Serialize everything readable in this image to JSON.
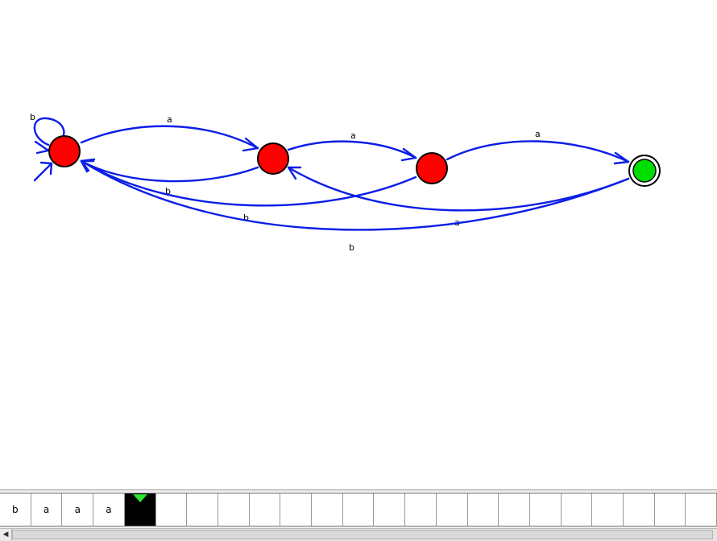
{
  "diagram": {
    "type": "finite-automaton",
    "colors": {
      "state_fill": "#ff0000",
      "accepting_state_fill": "#00dd00",
      "edge": "#0a1ee6",
      "head_marker": "#2ee62e"
    },
    "states": [
      {
        "id": "s0",
        "initial": true,
        "accepting": false
      },
      {
        "id": "s1",
        "initial": false,
        "accepting": false
      },
      {
        "id": "s2",
        "initial": false,
        "accepting": false
      },
      {
        "id": "s3",
        "initial": false,
        "accepting": true
      }
    ],
    "transitions": [
      {
        "from": "s0",
        "to": "s0",
        "label": "b"
      },
      {
        "from": "s0",
        "to": "s1",
        "label": "a"
      },
      {
        "from": "s1",
        "to": "s2",
        "label": "a"
      },
      {
        "from": "s2",
        "to": "s3",
        "label": "a"
      },
      {
        "from": "s1",
        "to": "s0",
        "label": "b"
      },
      {
        "from": "s2",
        "to": "s0",
        "label": "b"
      },
      {
        "from": "s3",
        "to": "s1",
        "label": "a"
      },
      {
        "from": "s3",
        "to": "s0",
        "label": "b"
      }
    ]
  },
  "tape": {
    "cells": [
      "b",
      "a",
      "a",
      "a",
      "",
      "",
      "",
      "",
      "",
      "",
      "",
      "",
      "",
      "",
      "",
      "",
      "",
      "",
      "",
      "",
      "",
      "",
      ""
    ],
    "head_index": 4
  }
}
